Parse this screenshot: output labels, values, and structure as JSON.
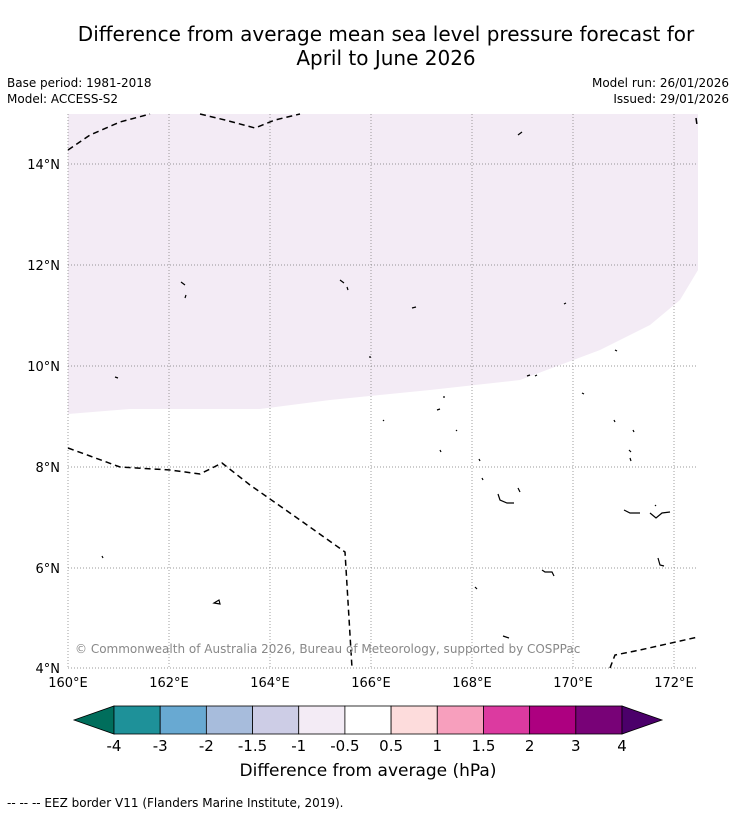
{
  "title_line1": "Difference from average mean sea level pressure forecast for",
  "title_line2": "April to June 2026",
  "base_period": "Base period: 1981-2018",
  "model": "Model: ACCESS-S2",
  "model_run": "Model run: 26/01/2026",
  "issued": "Issued: 29/01/2026",
  "copyright": "© Commonwealth of Australia 2026, Bureau of Meteorology, supported by COSPPac",
  "lat_labels": [
    "4°N",
    "6°N",
    "8°N",
    "10°N",
    "12°N",
    "14°N"
  ],
  "lon_labels": [
    "160°E",
    "162°E",
    "164°E",
    "166°E",
    "168°E",
    "170°E",
    "172°E"
  ],
  "colorbar": {
    "title": "Difference from average (hPa)",
    "ticks": [
      "-4",
      "-3",
      "-2",
      "-1.5",
      "-1",
      "-0.5",
      "0.5",
      "1",
      "1.5",
      "2",
      "3",
      "4"
    ],
    "colors": [
      "#006e5c",
      "#1e9199",
      "#68a9d2",
      "#a7bcdc",
      "#cdcde6",
      "#f3ebf5",
      "#ffffff",
      "#fddcdc",
      "#f79fbd",
      "#dc3aa0",
      "#ad0080",
      "#780277",
      "#4b006a"
    ]
  },
  "legend_note": "--  --  -- EEZ border V11 (Flanders Marine Institute, 2019)."
}
